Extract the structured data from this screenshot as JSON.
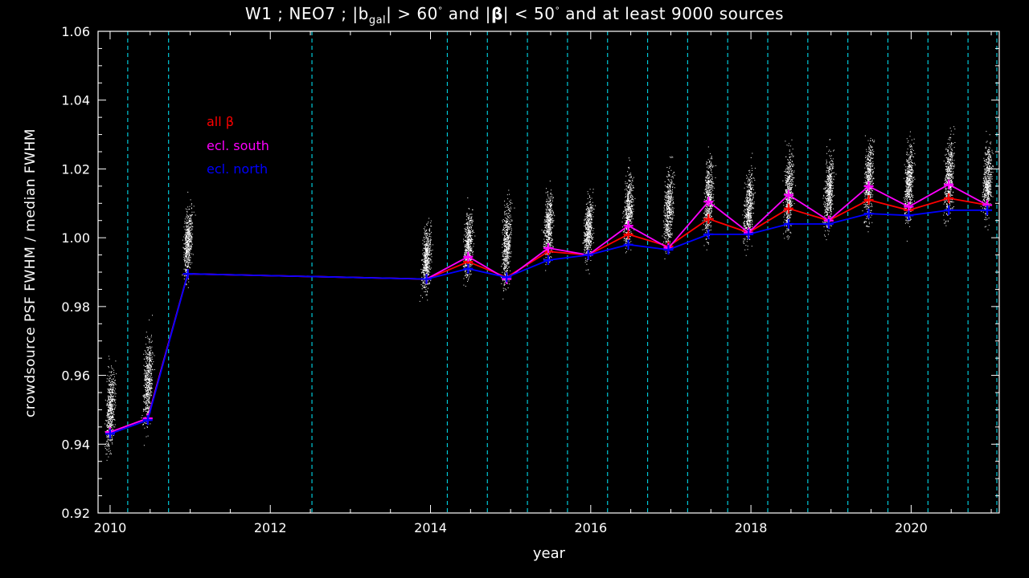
{
  "title": {
    "prefix": "W1 ; NEO7 ; |b",
    "sub": "gal",
    "mid1": "| > 60",
    "deg1": "°",
    "mid2": " and |",
    "beta": "β",
    "mid3": "| < 50",
    "deg2": "°",
    "suffix": " and at least 9000 sources"
  },
  "chart_data": {
    "type": "line",
    "title": "W1 ; NEO7 ; |b_gal| > 60° and |β| < 50° and at least 9000 sources",
    "xlabel": "year",
    "ylabel": "crowdsource PSF FWHM / median FWHM",
    "xlim": [
      2009.85,
      2021.1
    ],
    "ylim": [
      0.92,
      1.06
    ],
    "x_ticks": [
      2010,
      2012,
      2014,
      2016,
      2018,
      2020
    ],
    "x_tick_labels": [
      "2010",
      "2012",
      "2014",
      "2016",
      "2018",
      "2020"
    ],
    "y_ticks": [
      0.92,
      0.94,
      0.96,
      0.98,
      1.0,
      1.02,
      1.04,
      1.06
    ],
    "y_tick_labels": [
      "0.92",
      "0.94",
      "0.96",
      "0.98",
      "1.00",
      "1.02",
      "1.04",
      "1.06"
    ],
    "grid": false,
    "legend_position": "top-left",
    "vertical_lines": [
      2010.22,
      2010.73,
      2012.52,
      2014.21,
      2014.71,
      2015.21,
      2015.71,
      2016.21,
      2016.71,
      2017.21,
      2017.71,
      2018.21,
      2018.71,
      2019.21,
      2019.71,
      2020.21,
      2020.71,
      2021.07
    ],
    "vertical_line_color": "#00c8d8",
    "x": [
      2010.0,
      2010.47,
      2010.97,
      2013.95,
      2014.47,
      2014.95,
      2015.47,
      2015.97,
      2016.47,
      2016.97,
      2017.47,
      2017.97,
      2018.47,
      2018.97,
      2019.47,
      2019.97,
      2020.47,
      2020.95
    ],
    "series": [
      {
        "name": "all β",
        "color": "#ff0000",
        "values": [
          0.9435,
          0.9475,
          0.9895,
          0.988,
          0.993,
          0.9885,
          0.996,
          0.995,
          1.001,
          0.9975,
          1.0055,
          1.0015,
          1.0085,
          1.005,
          1.011,
          1.008,
          1.0115,
          1.0095
        ]
      },
      {
        "name": "ecl. south",
        "color": "#ff00ff",
        "values": [
          0.9435,
          0.9475,
          0.9895,
          0.988,
          0.9945,
          0.988,
          0.997,
          0.995,
          1.0035,
          0.997,
          1.0105,
          1.0015,
          1.0125,
          1.005,
          1.015,
          1.009,
          1.0155,
          1.0095
        ]
      },
      {
        "name": "ecl. north",
        "color": "#0000ff",
        "values": [
          0.943,
          0.947,
          0.9895,
          0.988,
          0.991,
          0.9885,
          0.9935,
          0.995,
          0.998,
          0.9965,
          1.001,
          1.001,
          1.004,
          1.004,
          1.007,
          1.0065,
          1.008,
          1.008
        ]
      }
    ],
    "scatter_clouds": [
      {
        "x_center": 2010.0,
        "y_min": 0.932,
        "y_max": 0.968
      },
      {
        "x_center": 2010.47,
        "y_min": 0.939,
        "y_max": 0.978
      },
      {
        "x_center": 2010.97,
        "y_min": 0.983,
        "y_max": 1.014
      },
      {
        "x_center": 2013.95,
        "y_min": 0.979,
        "y_max": 1.008
      },
      {
        "x_center": 2014.47,
        "y_min": 0.983,
        "y_max": 1.013
      },
      {
        "x_center": 2014.95,
        "y_min": 0.98,
        "y_max": 1.016
      },
      {
        "x_center": 2015.47,
        "y_min": 0.988,
        "y_max": 1.018
      },
      {
        "x_center": 2015.97,
        "y_min": 0.989,
        "y_max": 1.016
      },
      {
        "x_center": 2016.47,
        "y_min": 0.992,
        "y_max": 1.024
      },
      {
        "x_center": 2016.97,
        "y_min": 0.991,
        "y_max": 1.026
      },
      {
        "x_center": 2017.47,
        "y_min": 0.993,
        "y_max": 1.03
      },
      {
        "x_center": 2017.97,
        "y_min": 0.992,
        "y_max": 1.026
      },
      {
        "x_center": 2018.47,
        "y_min": 0.996,
        "y_max": 1.032
      },
      {
        "x_center": 2018.97,
        "y_min": 0.996,
        "y_max": 1.03
      },
      {
        "x_center": 2019.47,
        "y_min": 0.999,
        "y_max": 1.035
      },
      {
        "x_center": 2019.97,
        "y_min": 0.999,
        "y_max": 1.033
      },
      {
        "x_center": 2020.47,
        "y_min": 1.0,
        "y_max": 1.035
      },
      {
        "x_center": 2020.95,
        "y_min": 1.001,
        "y_max": 1.032
      }
    ]
  }
}
